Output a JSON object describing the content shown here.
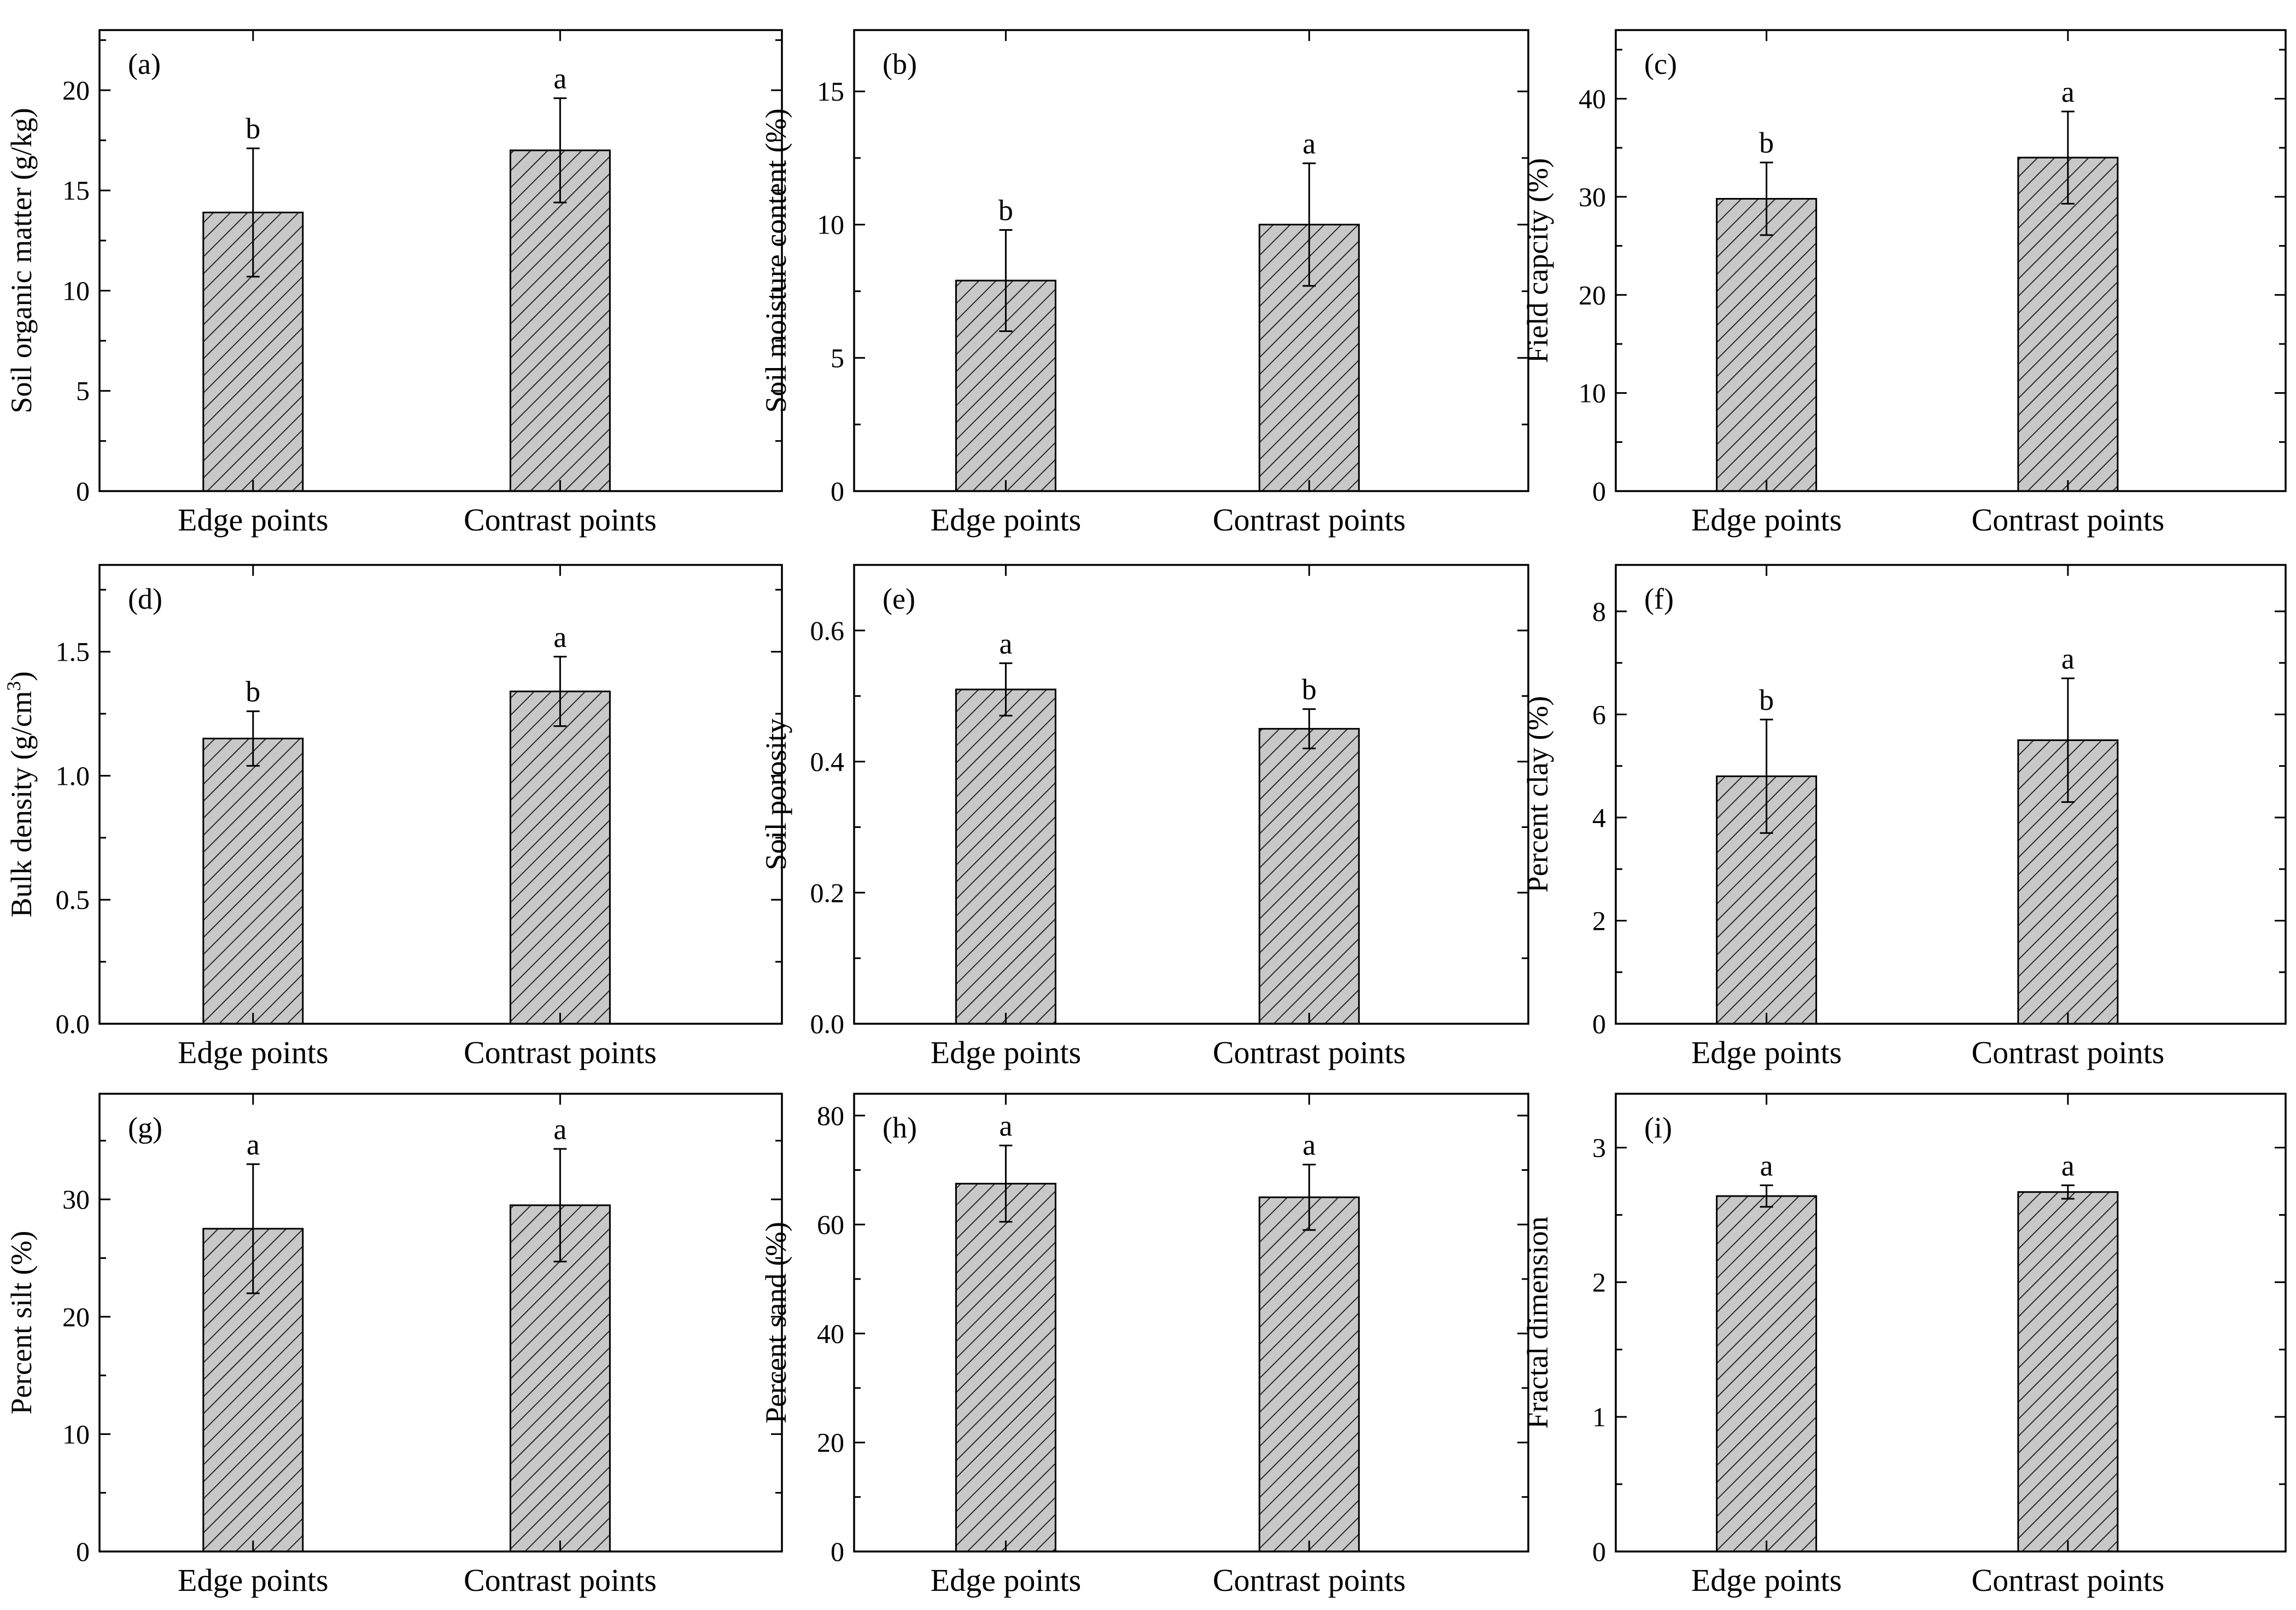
{
  "style": {
    "bar_fill": "#c8c8c8",
    "hatch_color": "#2a2a2a",
    "axis_color": "#000000",
    "background": "#ffffff"
  },
  "chart_data": [
    {
      "panel": "(a)",
      "type": "bar",
      "categories": [
        "Edge points",
        "Contrast points"
      ],
      "values": [
        13.9,
        17.0
      ],
      "errors": [
        3.2,
        2.6
      ],
      "letters": [
        "b",
        "a"
      ],
      "ylabel": "Soil organic matter (g/kg)",
      "ylim": [
        0,
        23
      ],
      "yticks": [
        0,
        5,
        10,
        15,
        20
      ],
      "ytick_labels": [
        "0",
        "5",
        "10",
        "15",
        "20"
      ],
      "grid": false,
      "legend": "none"
    },
    {
      "panel": "(b)",
      "type": "bar",
      "categories": [
        "Edge points",
        "Contrast points"
      ],
      "values": [
        7.9,
        10.0
      ],
      "errors": [
        1.9,
        2.3
      ],
      "letters": [
        "b",
        "a"
      ],
      "ylabel": "Soil moisture content (%)",
      "ylim": [
        0,
        17.3
      ],
      "yticks": [
        0,
        5,
        10,
        15
      ],
      "ytick_labels": [
        "0",
        "5",
        "10",
        "15"
      ],
      "grid": false,
      "legend": "none"
    },
    {
      "panel": "(c)",
      "type": "bar",
      "categories": [
        "Edge points",
        "Contrast points"
      ],
      "values": [
        29.8,
        34.0
      ],
      "errors": [
        3.7,
        4.7
      ],
      "letters": [
        "b",
        "a"
      ],
      "ylabel": "Field capcity (%)",
      "ylim": [
        0,
        47
      ],
      "yticks": [
        0,
        10,
        20,
        30,
        40
      ],
      "ytick_labels": [
        "0",
        "10",
        "20",
        "30",
        "40"
      ],
      "grid": false,
      "legend": "none"
    },
    {
      "panel": "(d)",
      "type": "bar",
      "categories": [
        "Edge points",
        "Contrast points"
      ],
      "values": [
        1.15,
        1.34
      ],
      "errors": [
        0.11,
        0.14
      ],
      "letters": [
        "b",
        "a"
      ],
      "ylabel": "Bulk density (g/cm",
      "ylabel_sup": "3",
      "ylabel_end": ")",
      "ylim": [
        0,
        1.85
      ],
      "yticks": [
        0,
        0.5,
        1.0,
        1.5
      ],
      "ytick_labels": [
        "0.0",
        "0.5",
        "1.0",
        "1.5"
      ],
      "grid": false,
      "legend": "none"
    },
    {
      "panel": "(e)",
      "type": "bar",
      "categories": [
        "Edge points",
        "Contrast points"
      ],
      "values": [
        0.51,
        0.45
      ],
      "errors": [
        0.04,
        0.03
      ],
      "letters": [
        "a",
        "b"
      ],
      "ylabel": "Soil porosity",
      "ylim": [
        0,
        0.7
      ],
      "yticks": [
        0,
        0.2,
        0.4,
        0.6
      ],
      "ytick_labels": [
        "0.0",
        "0.2",
        "0.4",
        "0.6"
      ],
      "grid": false,
      "legend": "none"
    },
    {
      "panel": "(f)",
      "type": "bar",
      "categories": [
        "Edge points",
        "Contrast points"
      ],
      "values": [
        4.8,
        5.5
      ],
      "errors": [
        1.1,
        1.2
      ],
      "letters": [
        "b",
        "a"
      ],
      "ylabel": "Percent clay (%)",
      "ylim": [
        0,
        8.9
      ],
      "yticks": [
        0,
        2,
        4,
        6,
        8
      ],
      "ytick_labels": [
        "0",
        "2",
        "4",
        "6",
        "8"
      ],
      "grid": false,
      "legend": "none"
    },
    {
      "panel": "(g)",
      "type": "bar",
      "categories": [
        "Edge points",
        "Contrast points"
      ],
      "values": [
        27.5,
        29.5
      ],
      "errors": [
        5.5,
        4.8
      ],
      "letters": [
        "a",
        "a"
      ],
      "ylabel": "Percent silt (%)",
      "ylim": [
        0,
        39
      ],
      "yticks": [
        0,
        10,
        20,
        30
      ],
      "ytick_labels": [
        "0",
        "10",
        "20",
        "30"
      ],
      "grid": false,
      "legend": "none"
    },
    {
      "panel": "(h)",
      "type": "bar",
      "categories": [
        "Edge points",
        "Contrast points"
      ],
      "values": [
        67.5,
        65.0
      ],
      "errors": [
        7.0,
        6.0
      ],
      "letters": [
        "a",
        "a"
      ],
      "ylabel": "Percent sand (%)",
      "ylim": [
        0,
        84
      ],
      "yticks": [
        0,
        20,
        40,
        60,
        80
      ],
      "ytick_labels": [
        "0",
        "20",
        "40",
        "60",
        "80"
      ],
      "grid": false,
      "legend": "none"
    },
    {
      "panel": "(i)",
      "type": "bar",
      "categories": [
        "Edge points",
        "Contrast points"
      ],
      "values": [
        2.64,
        2.67
      ],
      "errors": [
        0.08,
        0.05
      ],
      "letters": [
        "a",
        "a"
      ],
      "ylabel": "Fractal dimension",
      "ylim": [
        0,
        3.4
      ],
      "yticks": [
        0,
        1,
        2,
        3
      ],
      "ytick_labels": [
        "0",
        "1",
        "2",
        "3"
      ],
      "grid": false,
      "legend": "none"
    }
  ]
}
